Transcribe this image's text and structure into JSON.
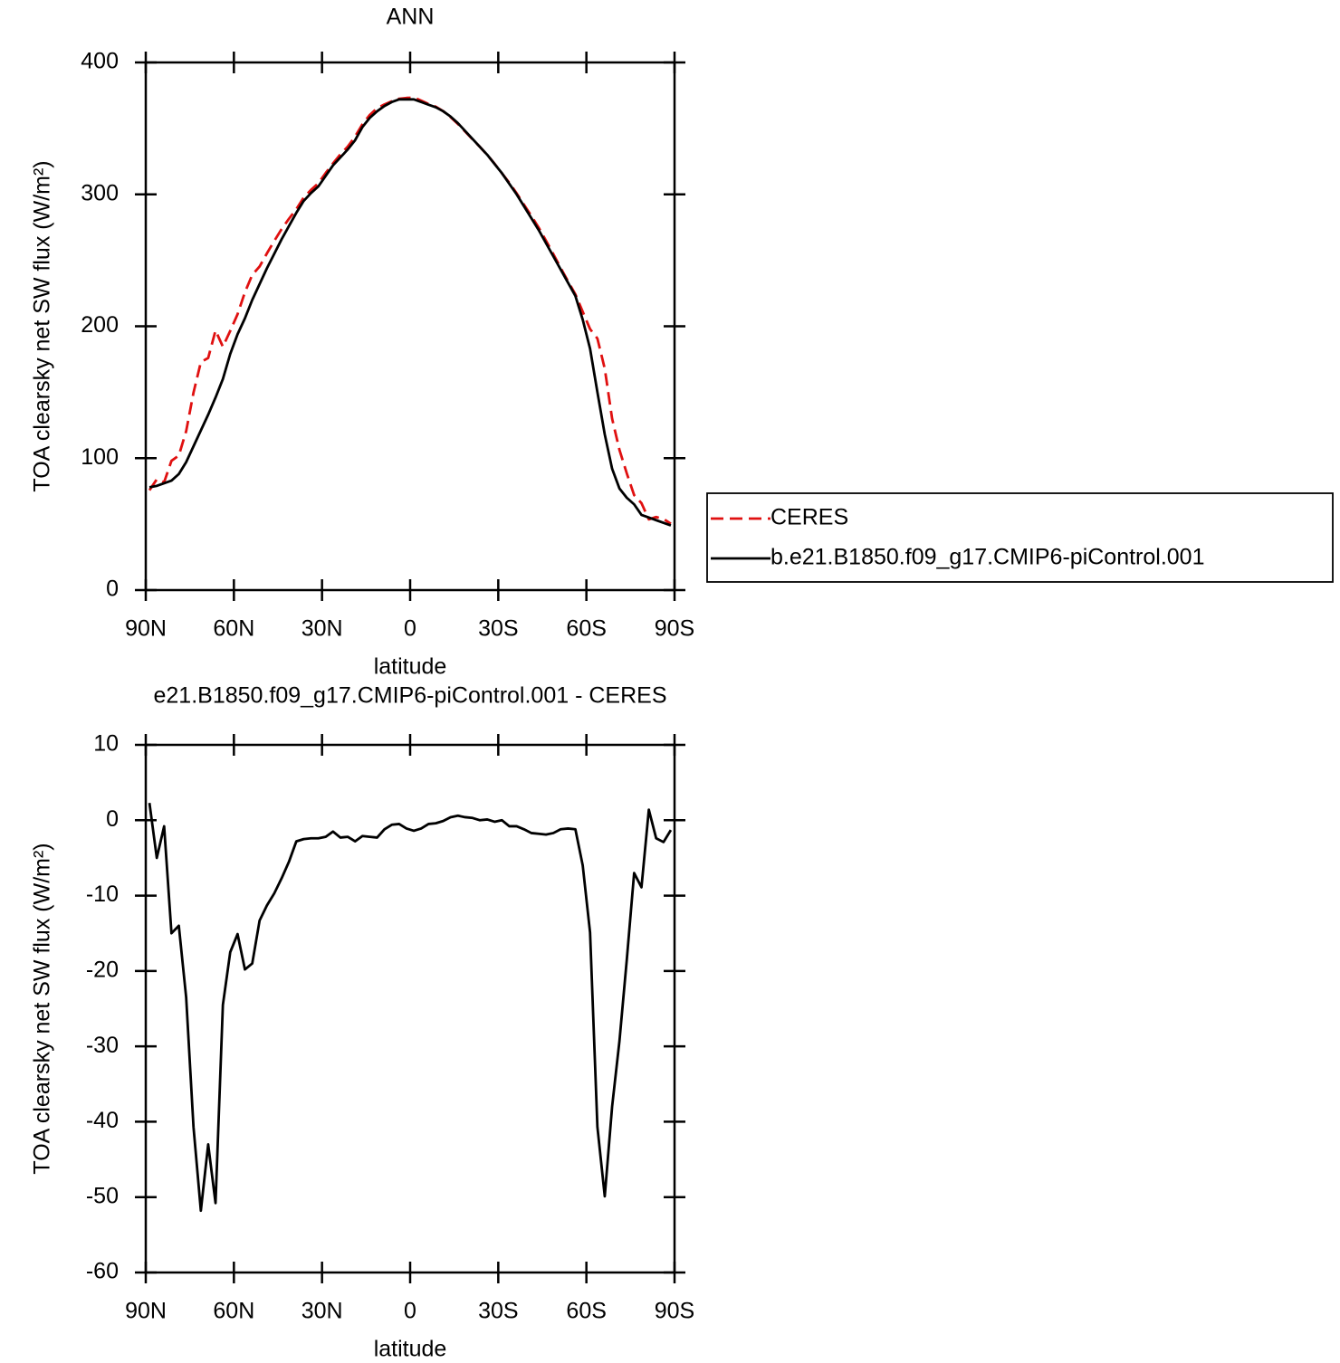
{
  "chart_data": [
    {
      "type": "line",
      "title": "ANN",
      "xlabel": "latitude",
      "ylabel": "TOA clearsky net SW flux (W/m²)",
      "x": [
        88.75,
        86.25,
        83.75,
        81.25,
        78.75,
        76.25,
        73.75,
        71.25,
        68.75,
        66.25,
        63.75,
        61.25,
        58.75,
        56.25,
        53.75,
        51.25,
        48.75,
        46.25,
        43.75,
        41.25,
        38.75,
        36.25,
        33.75,
        31.25,
        28.75,
        26.25,
        23.75,
        21.25,
        18.75,
        16.25,
        13.75,
        11.25,
        8.75,
        6.25,
        3.75,
        1.25,
        -1.25,
        -3.75,
        -6.25,
        -8.75,
        -11.25,
        -13.75,
        -16.25,
        -18.75,
        -21.25,
        -23.75,
        -26.25,
        -28.75,
        -31.25,
        -33.75,
        -36.25,
        -38.75,
        -41.25,
        -43.75,
        -46.25,
        -48.75,
        -51.25,
        -53.75,
        -56.25,
        -58.75,
        -61.25,
        -63.75,
        -66.25,
        -68.75,
        -71.25,
        -73.75,
        -76.25,
        -78.75,
        -81.25,
        -83.75,
        -86.25,
        -88.75
      ],
      "series": [
        {
          "name": "CERES",
          "color": "#e01010",
          "style": "dashed",
          "values": [
            75.7,
            84,
            81.8,
            98,
            102,
            120.5,
            149.7,
            172.8,
            176,
            196.8,
            184.5,
            196.5,
            209.1,
            225.8,
            239,
            245.3,
            255.3,
            264.7,
            273.7,
            281.5,
            288.8,
            297.5,
            303.4,
            308.4,
            316.2,
            323.5,
            330.3,
            336.2,
            343.8,
            353.1,
            360.2,
            365.3,
            368.2,
            370.6,
            372.5,
            373.1,
            373.4,
            371.1,
            368.5,
            366.4,
            363.1,
            358.6,
            353.4,
            347.6,
            341.7,
            336,
            329.9,
            323.2,
            316,
            308.8,
            300.8,
            292.2,
            283.7,
            274.8,
            264.9,
            254.7,
            244.2,
            234.1,
            224.2,
            211,
            197.9,
            190.7,
            167.9,
            130,
            106.3,
            88.5,
            72,
            65.9,
            53.6,
            55.4,
            53.9,
            50.3
          ]
        },
        {
          "name": "b.e21.B1850.f09_g17.CMIP6-piControl.001",
          "color": "#000000",
          "style": "solid",
          "values": [
            78,
            79,
            81,
            83,
            88,
            97,
            109,
            121,
            133,
            146,
            160,
            179,
            194,
            206,
            220,
            232,
            244,
            255,
            266,
            276,
            286,
            295,
            301,
            306,
            314,
            322,
            328,
            334,
            341,
            351,
            358,
            363,
            367,
            370,
            372,
            372,
            372,
            370,
            368,
            366,
            363,
            359,
            354,
            348,
            342,
            336,
            330,
            323,
            316,
            308,
            300,
            291,
            282,
            273,
            263,
            253,
            243,
            233,
            223,
            205,
            183,
            150,
            118,
            92,
            77,
            70,
            65,
            57,
            55,
            53,
            51,
            49
          ]
        }
      ],
      "xlim": [
        90,
        -90
      ],
      "xticks": [
        {
          "value": 90,
          "label": "90N"
        },
        {
          "value": 60,
          "label": "60N"
        },
        {
          "value": 30,
          "label": "30N"
        },
        0,
        {
          "value": -30,
          "label": "30S"
        },
        {
          "value": -60,
          "label": "60S"
        },
        {
          "value": -90,
          "label": "90S"
        }
      ],
      "ylim": [
        0,
        400
      ],
      "yticks": [
        0,
        100,
        200,
        300,
        400
      ],
      "legend": "right"
    },
    {
      "type": "line",
      "title": "e21.B1850.f09_g17.CMIP6-piControl.001 - CERES",
      "xlabel": "latitude",
      "ylabel": "TOA clearsky net SW flux (W/m²)",
      "x": [
        88.75,
        86.25,
        83.75,
        81.25,
        78.75,
        76.25,
        73.75,
        71.25,
        68.75,
        66.25,
        63.75,
        61.25,
        58.75,
        56.25,
        53.75,
        51.25,
        48.75,
        46.25,
        43.75,
        41.25,
        38.75,
        36.25,
        33.75,
        31.25,
        28.75,
        26.25,
        23.75,
        21.25,
        18.75,
        16.25,
        13.75,
        11.25,
        8.75,
        6.25,
        3.75,
        1.25,
        -1.25,
        -3.75,
        -6.25,
        -8.75,
        -11.25,
        -13.75,
        -16.25,
        -18.75,
        -21.25,
        -23.75,
        -26.25,
        -28.75,
        -31.25,
        -33.75,
        -36.25,
        -38.75,
        -41.25,
        -43.75,
        -46.25,
        -48.75,
        -51.25,
        -53.75,
        -56.25,
        -58.75,
        -61.25,
        -63.75,
        -66.25,
        -68.75,
        -71.25,
        -73.75,
        -76.25,
        -78.75,
        -81.25,
        -83.75,
        -86.25,
        -88.75
      ],
      "values": [
        2.3,
        -5,
        -0.8,
        -15,
        -14,
        -23.5,
        -40.7,
        -51.8,
        -43,
        -50.8,
        -24.5,
        -17.5,
        -15.1,
        -19.8,
        -19,
        -13.3,
        -11.3,
        -9.7,
        -7.7,
        -5.5,
        -2.8,
        -2.5,
        -2.4,
        -2.4,
        -2.2,
        -1.5,
        -2.3,
        -2.2,
        -2.8,
        -2.1,
        -2.2,
        -2.3,
        -1.2,
        -0.6,
        -0.5,
        -1.1,
        -1.4,
        -1.1,
        -0.5,
        -0.4,
        -0.1,
        0.4,
        0.6,
        0.4,
        0.3,
        0,
        0.1,
        -0.2,
        0,
        -0.8,
        -0.8,
        -1.2,
        -1.7,
        -1.8,
        -1.9,
        -1.7,
        -1.2,
        -1.1,
        -1.2,
        -6,
        -14.9,
        -40.7,
        -49.9,
        -38,
        -29.3,
        -18.5,
        -7,
        -8.9,
        1.4,
        -2.4,
        -2.9,
        -1.3
      ],
      "color": "#000000",
      "xlim": [
        90,
        -90
      ],
      "xticks": [
        {
          "value": 90,
          "label": "90N"
        },
        {
          "value": 60,
          "label": "60N"
        },
        {
          "value": 30,
          "label": "30N"
        },
        0,
        {
          "value": -30,
          "label": "30S"
        },
        {
          "value": -60,
          "label": "60S"
        },
        {
          "value": -90,
          "label": "90S"
        }
      ],
      "ylim": [
        -60,
        10
      ],
      "yticks": [
        -60,
        -50,
        -40,
        -30,
        -20,
        -10,
        0,
        10
      ]
    }
  ]
}
